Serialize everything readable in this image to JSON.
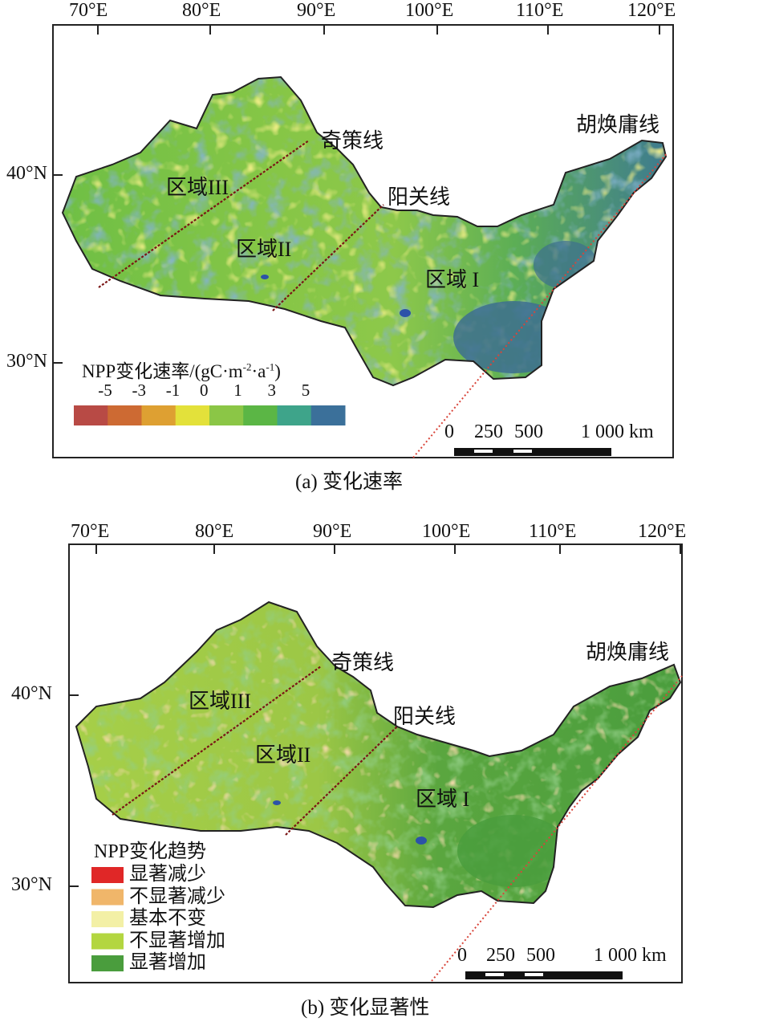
{
  "panel_a": {
    "lon_ticks": [
      "70°E",
      "80°E",
      "90°E",
      "100°E",
      "110°E",
      "120°E"
    ],
    "lat_ticks": [
      "40°N",
      "30°N"
    ],
    "lines": {
      "qice": "奇策线",
      "yangguan": "阳关线",
      "huhuanyong": "胡焕庸线"
    },
    "regions": {
      "r3": "区域III",
      "r2": "区域II",
      "r1": "区域 I"
    },
    "legend": {
      "title": "NPP变化速率/(gC·m",
      "title_sup1": "-2",
      "title_mid": "·a",
      "title_sup2": "-1",
      "title_end": ")",
      "values": [
        "-5",
        "-3",
        "-1",
        "0",
        "1",
        "3",
        "5"
      ],
      "colors": [
        "#b84a45",
        "#cd6a33",
        "#dea032",
        "#e3e13a",
        "#8bc646",
        "#5bb645",
        "#3ea48a",
        "#3b709a"
      ]
    },
    "scale_bar": {
      "labels": [
        "0",
        "250",
        "500",
        "1 000 km"
      ]
    },
    "caption": "(a) 变化速率"
  },
  "panel_b": {
    "lon_ticks": [
      "70°E",
      "80°E",
      "90°E",
      "100°E",
      "110°E",
      "120°E"
    ],
    "lat_ticks": [
      "40°N",
      "30°N"
    ],
    "lines": {
      "qice": "奇策线",
      "yangguan": "阳关线",
      "huhuanyong": "胡焕庸线"
    },
    "regions": {
      "r3": "区域III",
      "r2": "区域II",
      "r1": "区域 I"
    },
    "legend": {
      "title": "NPP变化趋势",
      "categories": [
        {
          "label": "显著减少",
          "color": "#e02727"
        },
        {
          "label": "不显著减少",
          "color": "#f0b66a"
        },
        {
          "label": "基本不变",
          "color": "#f3f0a6"
        },
        {
          "label": "不显著增加",
          "color": "#b3d640"
        },
        {
          "label": "显著增加",
          "color": "#4a9d3d"
        }
      ]
    },
    "scale_bar": {
      "labels": [
        "0",
        "250",
        "500",
        "1 000 km"
      ]
    },
    "caption": "(b) 变化显著性"
  }
}
